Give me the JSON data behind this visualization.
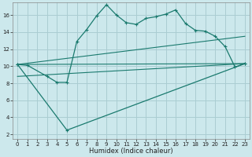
{
  "xlabel": "Humidex (Indice chaleur)",
  "background_color": "#cce8ec",
  "grid_color": "#aacdd2",
  "line_color": "#1a7a6e",
  "xlim": [
    -0.5,
    23.5
  ],
  "ylim": [
    1.5,
    17.5
  ],
  "yticks": [
    2,
    4,
    6,
    8,
    10,
    12,
    14,
    16
  ],
  "xticks": [
    0,
    1,
    2,
    3,
    4,
    5,
    6,
    7,
    8,
    9,
    10,
    11,
    12,
    13,
    14,
    15,
    16,
    17,
    18,
    19,
    20,
    21,
    22,
    23
  ],
  "series1_x": [
    0,
    1,
    3,
    4,
    5,
    6,
    7,
    8,
    9,
    10,
    11,
    12,
    13,
    14,
    15,
    16,
    17,
    18,
    19,
    20,
    21,
    22,
    23
  ],
  "series1_y": [
    10.2,
    10.1,
    8.8,
    8.1,
    8.1,
    12.9,
    14.3,
    15.9,
    17.2,
    16.0,
    15.1,
    14.9,
    15.6,
    15.8,
    16.1,
    16.6,
    15.0,
    14.2,
    14.1,
    13.5,
    12.3,
    9.9,
    10.3
  ],
  "series2_x": [
    0,
    5,
    23
  ],
  "series2_y": [
    10.2,
    2.5,
    10.3
  ],
  "line1_x": [
    0,
    23
  ],
  "line1_y": [
    10.2,
    10.3
  ],
  "line2_x": [
    0,
    23
  ],
  "line2_y": [
    10.2,
    13.5
  ],
  "line3_x": [
    0,
    23
  ],
  "line3_y": [
    8.8,
    10.3
  ]
}
